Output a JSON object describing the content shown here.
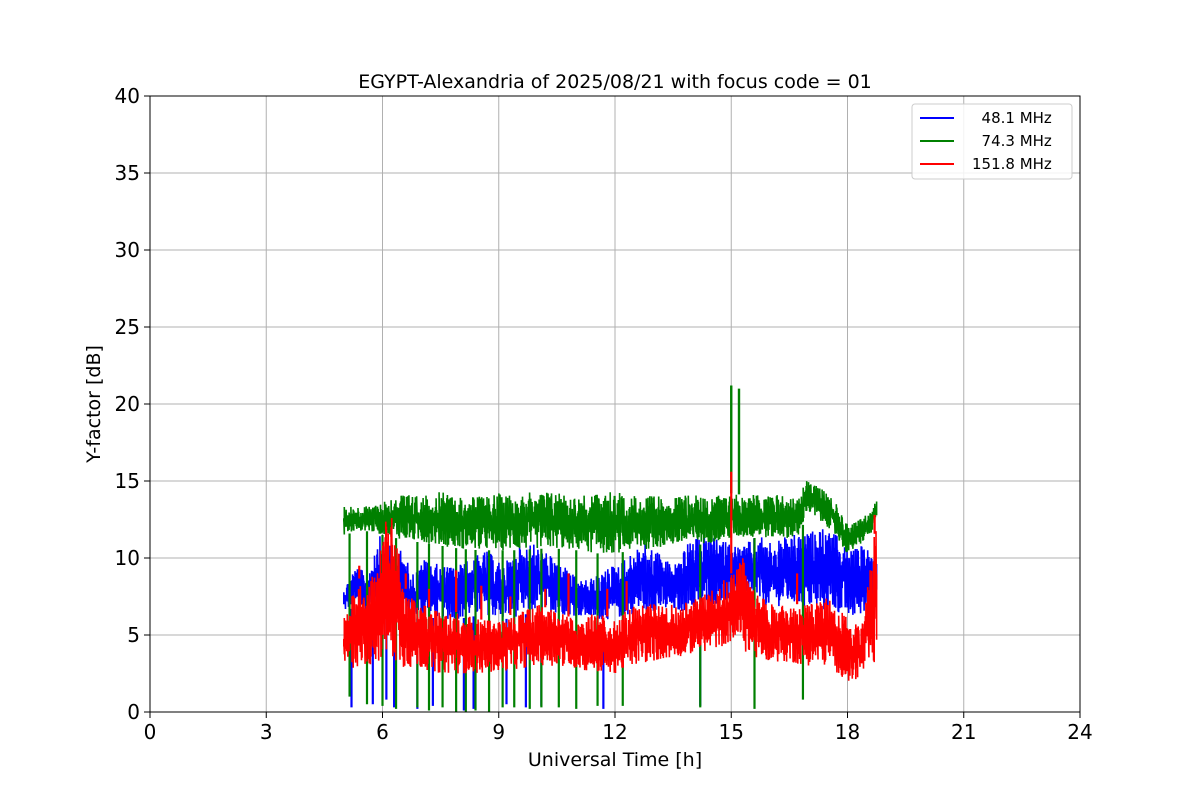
{
  "chart_data": {
    "type": "line",
    "title": "EGYPT-Alexandria of 2025/08/21 with focus code = 01",
    "xlabel": "Universal Time [h]",
    "ylabel": "Y-factor [dB]",
    "xlim": [
      0,
      24
    ],
    "ylim": [
      0,
      40
    ],
    "xticks": [
      0,
      3,
      6,
      9,
      12,
      15,
      18,
      21,
      24
    ],
    "yticks": [
      0,
      5,
      10,
      15,
      20,
      25,
      30,
      35,
      40
    ],
    "grid": true,
    "legend_position": "top-right",
    "series": [
      {
        "name": "  48.1 MHz",
        "color": "#0000ff",
        "x": [
          5.0,
          5.3,
          5.6,
          5.9,
          6.2,
          6.5,
          6.8,
          7.1,
          7.5,
          7.9,
          8.3,
          8.7,
          9.1,
          9.5,
          9.9,
          10.3,
          10.7,
          11.1,
          11.5,
          11.9,
          12.3,
          12.7,
          13.1,
          13.5,
          13.9,
          14.3,
          14.7,
          15.0,
          15.3,
          15.7,
          16.1,
          16.5,
          16.9,
          17.3,
          17.7,
          18.1,
          18.5,
          18.75
        ],
        "low": [
          6.5,
          6.8,
          6.5,
          7.0,
          6.8,
          6.2,
          6.0,
          6.2,
          6.0,
          6.0,
          6.2,
          6.3,
          6.0,
          6.2,
          6.5,
          6.5,
          6.3,
          6.2,
          6.0,
          6.0,
          6.2,
          6.5,
          6.5,
          6.5,
          6.5,
          6.8,
          7.0,
          7.0,
          7.0,
          7.0,
          6.8,
          7.0,
          6.8,
          6.5,
          6.5,
          6.0,
          6.5,
          7.0
        ],
        "high": [
          8.0,
          9.5,
          9.0,
          11.5,
          10.8,
          10.5,
          9.0,
          10.0,
          9.5,
          9.5,
          10.0,
          10.5,
          9.5,
          10.8,
          11.0,
          10.2,
          9.5,
          8.5,
          8.8,
          9.5,
          10.0,
          11.0,
          10.5,
          9.5,
          11.0,
          11.5,
          11.2,
          11.0,
          10.8,
          11.5,
          11.0,
          11.5,
          11.5,
          12.0,
          11.5,
          10.5,
          11.0,
          10.0
        ],
        "spikes_x": [
          5.2,
          5.75,
          6.1,
          6.3,
          6.9,
          7.3,
          8.1,
          8.35,
          9.2,
          9.7,
          10.1,
          11.7,
          14.2
        ],
        "spikes_min": [
          0.3,
          0.5,
          0.8,
          0.3,
          0.2,
          0.4,
          0.1,
          0.2,
          0.5,
          0.3,
          0.4,
          0.2,
          0.4
        ]
      },
      {
        "name": "  74.3 MHz",
        "color": "#008000",
        "x": [
          5.0,
          5.5,
          6.0,
          6.5,
          7.0,
          7.5,
          8.0,
          8.5,
          9.0,
          9.5,
          10.0,
          10.5,
          11.0,
          11.5,
          12.0,
          12.5,
          13.0,
          13.5,
          14.0,
          14.5,
          15.0,
          15.3,
          15.6,
          16.0,
          16.5,
          16.8,
          16.9,
          17.2,
          17.5,
          17.8,
          18.0,
          18.3,
          18.6,
          18.75
        ],
        "low": [
          11.5,
          11.8,
          11.5,
          11.2,
          11.0,
          10.8,
          10.6,
          10.5,
          10.5,
          10.5,
          10.6,
          10.6,
          10.5,
          10.3,
          10.3,
          10.5,
          10.6,
          10.8,
          10.8,
          11.0,
          11.2,
          11.3,
          11.3,
          11.3,
          11.3,
          11.3,
          13.0,
          12.5,
          12.0,
          11.0,
          10.2,
          10.8,
          11.5,
          12.5
        ],
        "high": [
          13.4,
          13.3,
          13.7,
          14.2,
          14.0,
          14.3,
          14.0,
          14.0,
          14.2,
          14.2,
          14.3,
          14.4,
          14.0,
          14.2,
          14.3,
          14.1,
          14.0,
          14.0,
          14.1,
          14.0,
          14.2,
          14.1,
          14.1,
          14.2,
          14.0,
          13.9,
          15.2,
          14.8,
          14.2,
          13.2,
          12.2,
          12.5,
          13.0,
          13.8
        ],
        "spikes_x": [
          5.15,
          5.6,
          6.0,
          6.35,
          6.9,
          7.2,
          7.55,
          7.9,
          8.15,
          8.4,
          8.75,
          9.1,
          9.4,
          9.8,
          10.1,
          10.55,
          11.0,
          11.55,
          12.2,
          14.2,
          15.6,
          16.85
        ],
        "spikes_min": [
          1.0,
          0.5,
          0.4,
          0.2,
          0.3,
          0.1,
          0.3,
          0.0,
          0.0,
          0.1,
          0.0,
          0.3,
          0.3,
          0.2,
          0.3,
          0.3,
          0.2,
          0.4,
          0.4,
          0.3,
          0.2,
          0.8
        ],
        "peaks": [
          {
            "x": 15.0,
            "y": 21.2
          },
          {
            "x": 15.2,
            "y": 21.0
          }
        ]
      },
      {
        "name": "151.8 MHz",
        "color": "#ff0000",
        "x": [
          5.0,
          5.3,
          5.6,
          5.9,
          6.1,
          6.3,
          6.6,
          7.0,
          7.5,
          8.0,
          8.5,
          9.0,
          9.5,
          10.0,
          10.5,
          11.0,
          11.5,
          12.0,
          12.5,
          13.0,
          13.5,
          14.0,
          14.5,
          15.0,
          15.3,
          15.6,
          16.0,
          16.5,
          17.0,
          17.5,
          17.9,
          18.1,
          18.4,
          18.75
        ],
        "low": [
          2.8,
          2.8,
          3.0,
          3.2,
          3.5,
          3.2,
          2.8,
          2.8,
          2.5,
          2.5,
          2.5,
          2.6,
          2.8,
          3.0,
          3.0,
          2.8,
          2.5,
          2.5,
          3.0,
          3.3,
          3.5,
          3.8,
          4.0,
          4.5,
          4.0,
          3.5,
          3.3,
          3.2,
          3.0,
          3.0,
          2.2,
          1.8,
          2.5,
          3.0
        ],
        "high": [
          6.0,
          9.0,
          8.0,
          10.0,
          12.8,
          12.5,
          8.0,
          7.0,
          6.5,
          6.5,
          6.0,
          6.0,
          6.5,
          7.0,
          6.5,
          6.0,
          6.5,
          6.0,
          7.0,
          7.0,
          7.0,
          7.2,
          8.0,
          9.0,
          10.0,
          8.0,
          7.0,
          7.0,
          7.0,
          7.5,
          6.5,
          5.5,
          6.0,
          12.5
        ],
        "spikes_x": [
          5.4,
          6.6,
          7.2,
          7.9,
          8.55,
          9.3,
          10.2,
          10.8,
          11.8,
          12.3,
          15.0,
          16.7,
          18.7
        ],
        "spikes_max": [
          9.5,
          9.0,
          8.0,
          9.2,
          8.2,
          7.5,
          8.0,
          9.0,
          8.0,
          8.5,
          15.6,
          9.0,
          12.8
        ]
      }
    ]
  }
}
